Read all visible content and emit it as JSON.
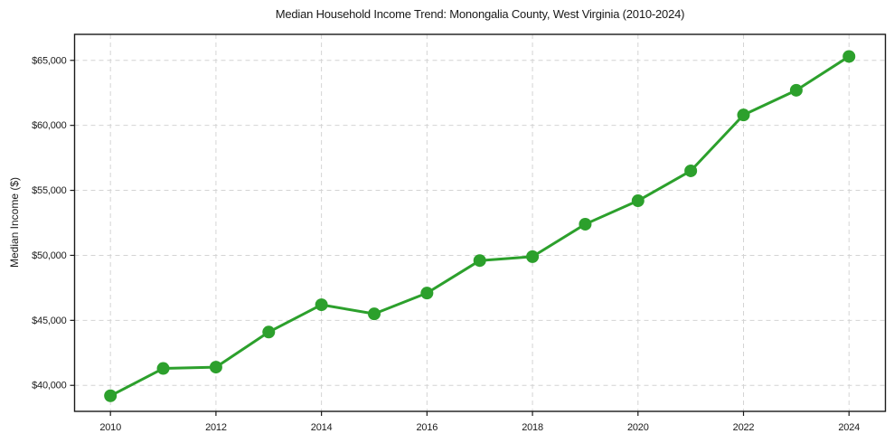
{
  "chart_data": {
    "type": "line",
    "title": "Median Household Income Trend: Monongalia County, West Virginia (2010-2024)",
    "xlabel": "",
    "ylabel": "Median Income ($)",
    "x": [
      2010,
      2011,
      2012,
      2013,
      2014,
      2015,
      2016,
      2017,
      2018,
      2019,
      2020,
      2021,
      2022,
      2023,
      2024
    ],
    "series": [
      {
        "name": "Median Household Income",
        "values": [
          39200,
          41300,
          41400,
          44100,
          46200,
          45500,
          47100,
          49600,
          49900,
          52400,
          54200,
          56500,
          60800,
          62700,
          65300
        ]
      }
    ],
    "x_ticks": [
      2010,
      2012,
      2014,
      2016,
      2018,
      2020,
      2022,
      2024
    ],
    "x_tick_labels": [
      "2010",
      "2012",
      "2014",
      "2016",
      "2018",
      "2020",
      "2022",
      "2024"
    ],
    "y_ticks": [
      40000,
      45000,
      50000,
      55000,
      60000,
      65000
    ],
    "y_tick_labels": [
      "$40,000",
      "$45,000",
      "$50,000",
      "$55,000",
      "$60,000",
      "$65,000"
    ],
    "xlim": [
      2009.32,
      2024.69
    ],
    "ylim": [
      38000,
      67000
    ],
    "grid": true,
    "grid_style": "dashed",
    "legend": "none",
    "colors": {
      "line": "#2ca02c",
      "marker": "#2ca02c",
      "grid": "#d4d4d4",
      "frame": "#1a1a1a",
      "text": "#1a1a1a",
      "background": "#ffffff"
    }
  }
}
